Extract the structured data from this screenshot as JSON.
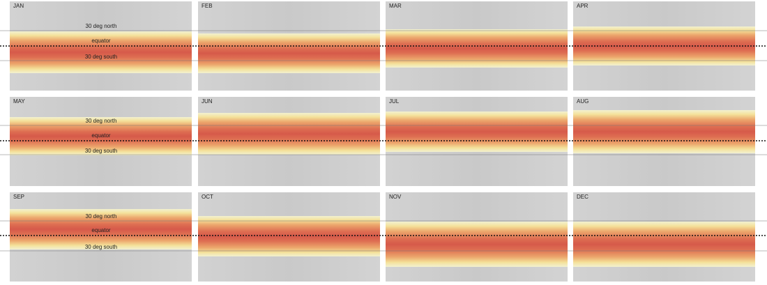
{
  "panels": [
    {
      "month": "JAN"
    },
    {
      "month": "FEB"
    },
    {
      "month": "MAR"
    },
    {
      "month": "APR"
    },
    {
      "month": "MAY"
    },
    {
      "month": "JUN"
    },
    {
      "month": "JUL"
    },
    {
      "month": "AUG"
    },
    {
      "month": "SEP"
    },
    {
      "month": "OCT"
    },
    {
      "month": "NOV"
    },
    {
      "month": "DEC"
    }
  ],
  "latitude_labels": {
    "north": "30 deg north",
    "equator": "equator",
    "south": "30 deg south"
  }
}
